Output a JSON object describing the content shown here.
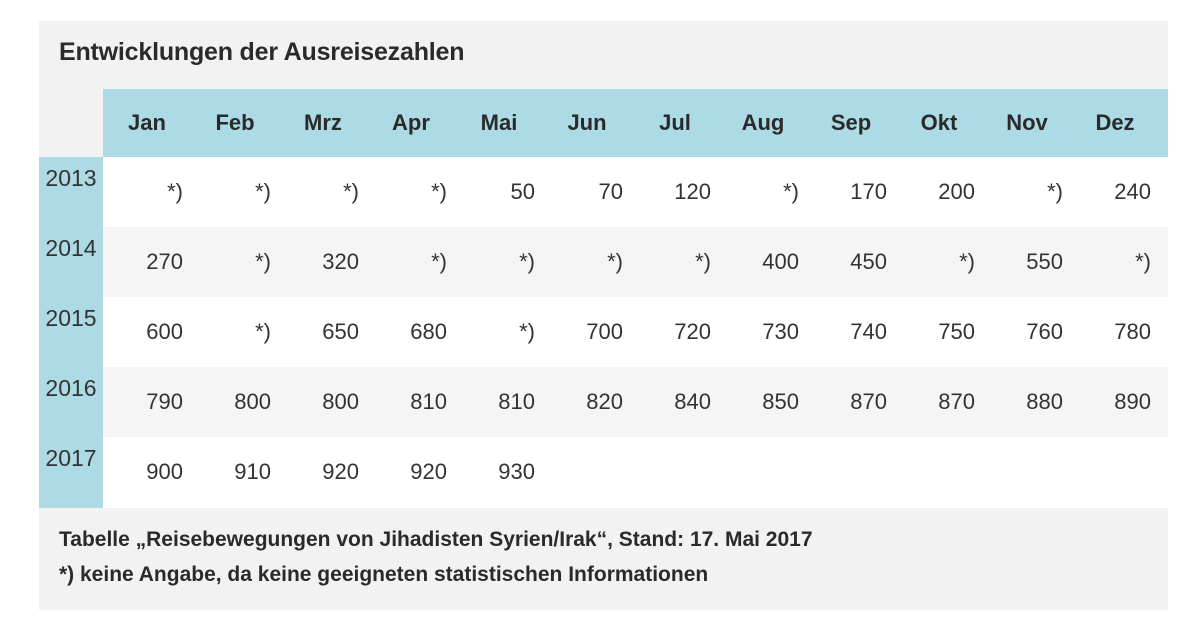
{
  "chart_data": {
    "type": "table",
    "title": "Entwicklungen der Ausreisezahlen",
    "columns": [
      "Jan",
      "Feb",
      "Mrz",
      "Apr",
      "Mai",
      "Jun",
      "Jul",
      "Aug",
      "Sep",
      "Okt",
      "Nov",
      "Dez"
    ],
    "rows": [
      {
        "year": "2013",
        "values": [
          "*)",
          "*)",
          "*)",
          "*)",
          "50",
          "70",
          "120",
          "*)",
          "170",
          "200",
          "*)",
          "240"
        ]
      },
      {
        "year": "2014",
        "values": [
          "270",
          "*)",
          "320",
          "*)",
          "*)",
          "*)",
          "*)",
          "400",
          "450",
          "*)",
          "550",
          "*)"
        ]
      },
      {
        "year": "2015",
        "values": [
          "600",
          "*)",
          "650",
          "680",
          "*)",
          "700",
          "720",
          "730",
          "740",
          "750",
          "760",
          "780"
        ]
      },
      {
        "year": "2016",
        "values": [
          "790",
          "800",
          "800",
          "810",
          "810",
          "820",
          "840",
          "850",
          "870",
          "870",
          "880",
          "890"
        ]
      },
      {
        "year": "2017",
        "values": [
          "900",
          "910",
          "920",
          "920",
          "930",
          "",
          "",
          "",
          "",
          "",
          "",
          ""
        ]
      }
    ],
    "source": "Tabelle „Reisebewegungen von Jihadisten Syrien/Irak“, Stand: 17. Mai 2017",
    "footnote": "*) keine Angabe, da keine geeigneten statistischen Informationen"
  },
  "colors": {
    "header_bg": "#acdbe6",
    "panel_bg": "#f2f2f2",
    "row_alt_bg": "#f5f5f5",
    "text": "#2a2a2a"
  }
}
